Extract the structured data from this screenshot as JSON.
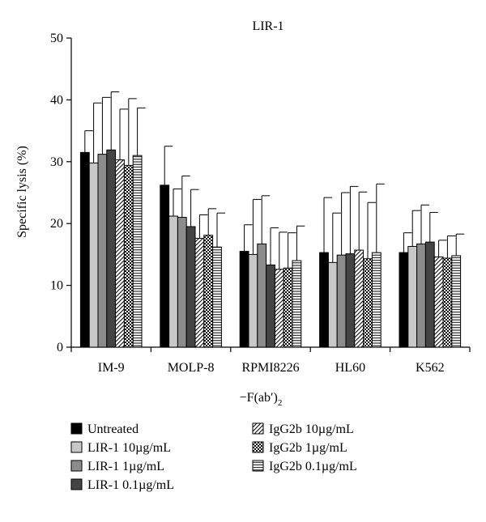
{
  "chart_data": {
    "type": "bar",
    "title": "LIR-1",
    "xlabel": "−F(ab′)",
    "xlabel_subscript": "2",
    "ylabel": "Specific lysis (%)",
    "ylim": [
      0,
      50
    ],
    "yticks": [
      0,
      10,
      20,
      30,
      40,
      50
    ],
    "grid": false,
    "legend_position": "bottom",
    "categories": [
      "IM-9",
      "MOLP-8",
      "RPMI8226",
      "HL60",
      "K562"
    ],
    "series": [
      {
        "name": "Untreated",
        "fill": "black",
        "values": [
          31.5,
          26.2,
          15.5,
          15.3,
          15.3
        ],
        "errors": [
          3.5,
          6.3,
          4.3,
          8.9,
          3.2
        ]
      },
      {
        "name": "LIR-1 10µg/mL",
        "fill": "light-gray",
        "values": [
          29.8,
          21.2,
          15.0,
          13.7,
          16.3
        ],
        "errors": [
          9.7,
          4.4,
          8.9,
          8.0,
          5.8
        ]
      },
      {
        "name": "LIR-1 1µg/mL",
        "fill": "mid-gray",
        "values": [
          31.2,
          21.0,
          16.7,
          14.9,
          16.7
        ],
        "errors": [
          9.2,
          6.7,
          7.8,
          10.1,
          6.3
        ]
      },
      {
        "name": "LIR-1 0.1µg/mL",
        "fill": "dark-gray",
        "values": [
          31.9,
          19.5,
          13.3,
          15.1,
          17.0
        ],
        "errors": [
          9.4,
          6.0,
          6.0,
          10.9,
          4.8
        ]
      },
      {
        "name": "IgG2b 10µg/mL",
        "fill": "diagonal-hatch",
        "values": [
          30.3,
          17.6,
          12.6,
          15.7,
          14.6
        ],
        "errors": [
          8.2,
          3.8,
          6.0,
          9.4,
          2.7
        ]
      },
      {
        "name": "IgG2b 1µg/mL",
        "fill": "checker",
        "values": [
          29.4,
          18.1,
          12.8,
          14.3,
          14.4
        ],
        "errors": [
          10.8,
          4.3,
          5.7,
          9.1,
          3.6
        ]
      },
      {
        "name": "IgG2b 0.1µg/mL",
        "fill": "horizontal-stripes",
        "values": [
          31.0,
          16.2,
          14.0,
          15.3,
          14.8
        ],
        "errors": [
          7.7,
          5.5,
          5.6,
          11.1,
          3.5
        ]
      }
    ],
    "colors": {
      "black": "#000000",
      "light-gray": "#c8c8c8",
      "mid-gray": "#8c8c8c",
      "dark-gray": "#444444",
      "outline": "#000000"
    }
  }
}
